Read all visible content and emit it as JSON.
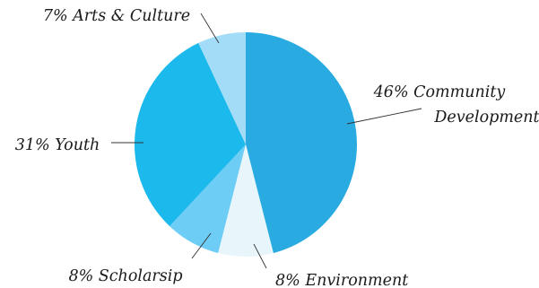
{
  "chart_data": {
    "type": "pie",
    "start_angle_deg": 0,
    "direction": "clockwise",
    "slices": [
      {
        "label_lines": [
          "46% Community",
          "Development"
        ],
        "percent": 46,
        "color": "#29ABE2"
      },
      {
        "label_lines": [
          "8% Environment"
        ],
        "percent": 8,
        "color": "#E8F6FC"
      },
      {
        "label_lines": [
          "8% Scholarsip"
        ],
        "percent": 8,
        "color": "#6ECDF5"
      },
      {
        "label_lines": [
          "31% Youth"
        ],
        "percent": 31,
        "color": "#1BB9EC"
      },
      {
        "label_lines": [
          "7% Arts & Culture"
        ],
        "percent": 7,
        "color": "#A3DCF7"
      }
    ]
  }
}
